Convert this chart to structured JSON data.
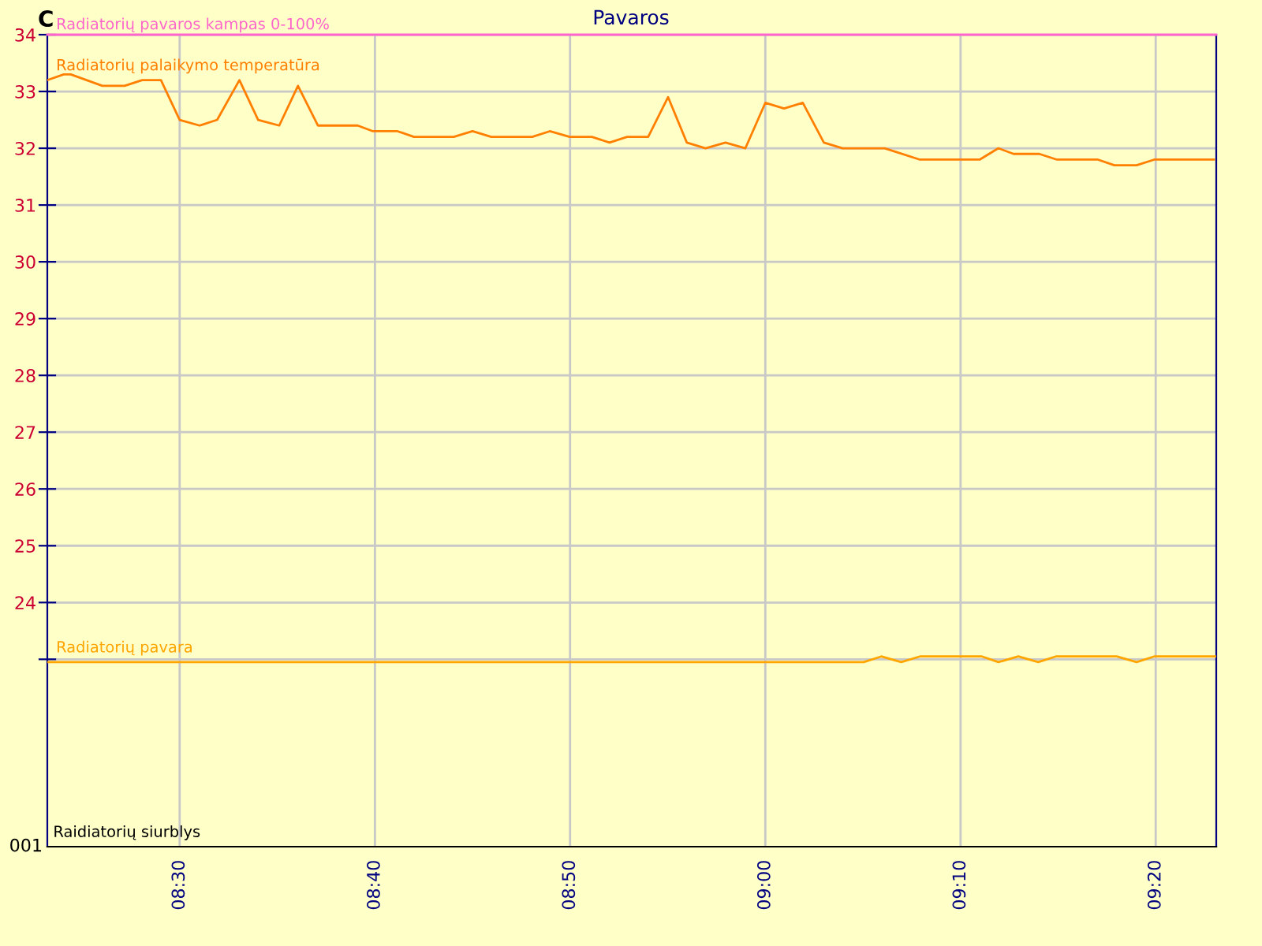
{
  "chart_data": {
    "type": "line",
    "title": "Pavaros",
    "ylabel": "C",
    "xlim": [
      8.387,
      9.385
    ],
    "xticks": [
      {
        "value": 8.5,
        "label": "08:30"
      },
      {
        "value": 8.6667,
        "label": "08:40"
      },
      {
        "value": 8.8333,
        "label": "08:50"
      },
      {
        "value": 9.0,
        "label": "09:00"
      },
      {
        "value": 9.1667,
        "label": "09:10"
      },
      {
        "value": 9.3333,
        "label": "09:20"
      }
    ],
    "ylim": [
      19.7,
      34
    ],
    "yticks": [
      {
        "value": 23,
        "label": null
      },
      24,
      25,
      26,
      27,
      28,
      29,
      30,
      31,
      32,
      33,
      34
    ],
    "grid": true,
    "legend": false,
    "line_style": "solid",
    "marker": "none",
    "ref_lines": [
      {
        "axis": "y",
        "value": 34,
        "label": "Radiatorių pavaros kampas 0-100%",
        "color": "#ff66cc"
      }
    ],
    "annotations": [
      "001",
      "Raidiatorių siurblys"
    ],
    "series": [
      {
        "name": "Radiatorių palaikymo temperatūra",
        "color": "#ff7f00",
        "x": [
          8.387,
          8.401,
          8.407,
          8.434,
          8.453,
          8.468,
          8.484,
          8.5,
          8.517,
          8.532,
          8.551,
          8.567,
          8.585,
          8.601,
          8.618,
          8.652,
          8.665,
          8.686,
          8.7,
          8.734,
          8.75,
          8.766,
          8.801,
          8.816,
          8.833,
          8.852,
          8.867,
          8.882,
          8.9,
          8.917,
          8.933,
          8.949,
          8.966,
          8.983,
          9.0,
          9.016,
          9.032,
          9.05,
          9.066,
          9.102,
          9.132,
          9.183,
          9.199,
          9.212,
          9.234,
          9.249,
          9.284,
          9.298,
          9.317,
          9.332,
          9.383
        ],
        "values": [
          33.2,
          33.3,
          33.3,
          33.1,
          33.1,
          33.2,
          33.2,
          32.5,
          32.4,
          32.5,
          33.2,
          32.5,
          32.4,
          33.1,
          32.4,
          32.4,
          32.3,
          32.3,
          32.2,
          32.2,
          32.3,
          32.2,
          32.2,
          32.3,
          32.2,
          32.2,
          32.1,
          32.2,
          32.2,
          32.9,
          32.1,
          32.0,
          32.1,
          32.0,
          32.8,
          32.7,
          32.8,
          32.1,
          32.0,
          32.0,
          31.8,
          31.8,
          32.0,
          31.9,
          31.9,
          31.8,
          31.8,
          31.7,
          31.7,
          31.8,
          31.8
        ]
      },
      {
        "name": "Radiatorių pavara",
        "color": "#ffa500",
        "x": [
          8.387,
          9.084,
          9.099,
          9.116,
          9.132,
          9.185,
          9.199,
          9.216,
          9.233,
          9.248,
          9.3,
          9.317,
          9.332,
          9.384
        ],
        "values": [
          22.95,
          22.95,
          23.05,
          22.95,
          23.05,
          23.05,
          22.95,
          23.05,
          22.95,
          23.05,
          23.05,
          22.95,
          23.05,
          23.05
        ]
      }
    ]
  }
}
